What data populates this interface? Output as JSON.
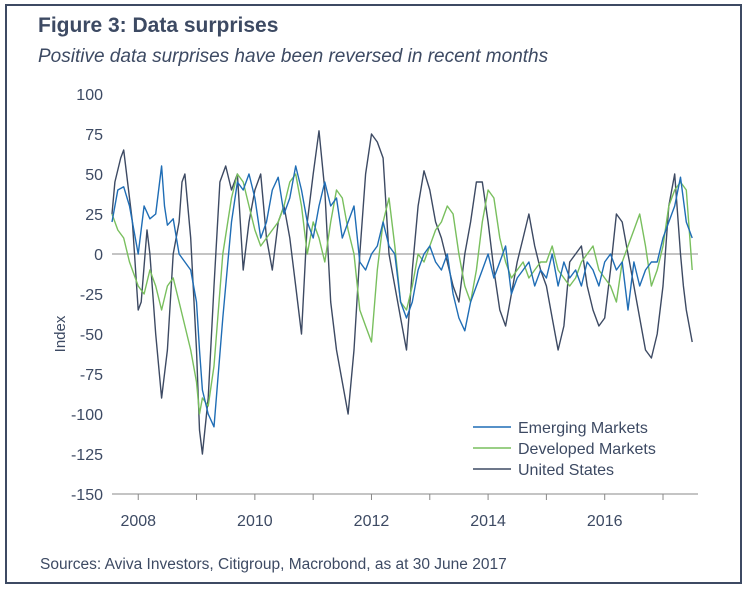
{
  "header": {
    "title": "Figure 3: Data surprises",
    "subtitle": "Positive data surprises have been reversed in recent months"
  },
  "footer": {
    "source": "Sources:  Aviva Investors, Citigroup, Macrobond, as at 30 June 2017"
  },
  "colors": {
    "frame": "#3d4a63",
    "text": "#3d4a63",
    "emerging": "#1f6db5",
    "developed": "#79bf5e",
    "us": "#3d4a63",
    "zero_line": "#a0a0a0"
  },
  "chart_data": {
    "type": "line",
    "ylabel": "Index",
    "xlabel": "",
    "ylim": [
      -150,
      100
    ],
    "xlim": [
      2007.55,
      2017.6
    ],
    "yticks": [
      100,
      75,
      50,
      25,
      0,
      -25,
      -50,
      -75,
      -100,
      -125,
      -150
    ],
    "xticks": [
      2008,
      2010,
      2012,
      2014,
      2016
    ],
    "legend_position": "bottom-right",
    "grid": false,
    "series": [
      {
        "name": "Emerging Markets",
        "x": [
          2007.55,
          2007.65,
          2007.75,
          2007.85,
          2008.0,
          2008.1,
          2008.2,
          2008.3,
          2008.4,
          2008.45,
          2008.5,
          2008.6,
          2008.7,
          2008.8,
          2008.9,
          2009.0,
          2009.05,
          2009.1,
          2009.2,
          2009.3,
          2009.45,
          2009.6,
          2009.7,
          2009.8,
          2009.9,
          2010.0,
          2010.1,
          2010.2,
          2010.3,
          2010.4,
          2010.5,
          2010.6,
          2010.7,
          2010.8,
          2010.9,
          2011.0,
          2011.1,
          2011.2,
          2011.3,
          2011.4,
          2011.5,
          2011.6,
          2011.7,
          2011.8,
          2011.9,
          2012.0,
          2012.1,
          2012.2,
          2012.3,
          2012.4,
          2012.5,
          2012.6,
          2012.7,
          2012.8,
          2012.9,
          2013.0,
          2013.1,
          2013.2,
          2013.3,
          2013.4,
          2013.5,
          2013.6,
          2013.7,
          2013.8,
          2013.9,
          2014.0,
          2014.1,
          2014.2,
          2014.3,
          2014.4,
          2014.5,
          2014.6,
          2014.7,
          2014.8,
          2014.9,
          2015.0,
          2015.1,
          2015.2,
          2015.3,
          2015.4,
          2015.5,
          2015.6,
          2015.7,
          2015.8,
          2015.9,
          2016.0,
          2016.1,
          2016.2,
          2016.3,
          2016.4,
          2016.5,
          2016.6,
          2016.7,
          2016.8,
          2016.9,
          2017.0,
          2017.1,
          2017.2,
          2017.3,
          2017.4,
          2017.5
        ],
        "y": [
          20,
          40,
          42,
          30,
          0,
          30,
          22,
          25,
          55,
          30,
          18,
          22,
          0,
          -5,
          -10,
          -30,
          -60,
          -85,
          -100,
          -108,
          -40,
          20,
          45,
          40,
          50,
          35,
          10,
          20,
          40,
          48,
          25,
          35,
          55,
          40,
          20,
          10,
          30,
          45,
          30,
          35,
          10,
          20,
          30,
          -5,
          -10,
          0,
          5,
          20,
          5,
          0,
          -30,
          -40,
          -30,
          -10,
          0,
          5,
          -5,
          -10,
          0,
          -25,
          -40,
          -48,
          -30,
          -20,
          -10,
          0,
          -15,
          -5,
          5,
          -25,
          -15,
          -10,
          -5,
          -20,
          -10,
          -15,
          0,
          -20,
          -5,
          -15,
          -10,
          -20,
          -5,
          -10,
          -20,
          -5,
          0,
          -10,
          -5,
          -35,
          -5,
          -20,
          -10,
          -5,
          -5,
          10,
          20,
          30,
          48,
          20,
          10
        ]
      },
      {
        "name": "Developed Markets",
        "x": [
          2007.55,
          2007.65,
          2007.75,
          2007.85,
          2008.0,
          2008.1,
          2008.2,
          2008.3,
          2008.4,
          2008.5,
          2008.6,
          2008.7,
          2008.8,
          2008.9,
          2009.0,
          2009.05,
          2009.1,
          2009.2,
          2009.3,
          2009.45,
          2009.6,
          2009.7,
          2009.8,
          2009.9,
          2010.0,
          2010.1,
          2010.2,
          2010.3,
          2010.4,
          2010.5,
          2010.6,
          2010.7,
          2010.8,
          2010.9,
          2011.0,
          2011.1,
          2011.2,
          2011.3,
          2011.4,
          2011.5,
          2011.6,
          2011.7,
          2011.8,
          2011.9,
          2012.0,
          2012.1,
          2012.2,
          2012.3,
          2012.4,
          2012.5,
          2012.6,
          2012.7,
          2012.8,
          2012.9,
          2013.0,
          2013.1,
          2013.2,
          2013.3,
          2013.4,
          2013.5,
          2013.6,
          2013.7,
          2013.8,
          2013.9,
          2014.0,
          2014.1,
          2014.2,
          2014.3,
          2014.4,
          2014.5,
          2014.6,
          2014.7,
          2014.8,
          2014.9,
          2015.0,
          2015.1,
          2015.2,
          2015.3,
          2015.4,
          2015.5,
          2015.6,
          2015.7,
          2015.8,
          2015.9,
          2016.0,
          2016.1,
          2016.2,
          2016.3,
          2016.4,
          2016.5,
          2016.6,
          2016.7,
          2016.8,
          2016.9,
          2017.0,
          2017.1,
          2017.2,
          2017.3,
          2017.4,
          2017.5
        ],
        "y": [
          25,
          15,
          10,
          -5,
          -20,
          -25,
          -10,
          -20,
          -35,
          -20,
          -15,
          -30,
          -45,
          -60,
          -80,
          -100,
          -90,
          -95,
          -70,
          0,
          35,
          50,
          45,
          30,
          15,
          5,
          10,
          15,
          20,
          30,
          45,
          50,
          30,
          0,
          20,
          10,
          -5,
          20,
          40,
          35,
          15,
          0,
          -35,
          -45,
          -55,
          -10,
          20,
          35,
          5,
          -30,
          -35,
          -20,
          0,
          -5,
          5,
          15,
          20,
          30,
          25,
          0,
          -20,
          -30,
          -10,
          20,
          40,
          35,
          10,
          -5,
          -15,
          -10,
          -5,
          -15,
          -10,
          -5,
          -5,
          5,
          -10,
          -15,
          -20,
          -15,
          -5,
          0,
          5,
          -10,
          -15,
          -20,
          -30,
          -5,
          5,
          15,
          25,
          5,
          -20,
          -10,
          5,
          30,
          40,
          45,
          40,
          -10
        ]
      },
      {
        "name": "United States",
        "x": [
          2007.55,
          2007.6,
          2007.7,
          2007.75,
          2007.8,
          2007.9,
          2008.0,
          2008.05,
          2008.15,
          2008.2,
          2008.3,
          2008.4,
          2008.5,
          2008.6,
          2008.7,
          2008.75,
          2008.8,
          2008.9,
          2009.0,
          2009.05,
          2009.1,
          2009.2,
          2009.3,
          2009.4,
          2009.5,
          2009.6,
          2009.7,
          2009.8,
          2009.9,
          2010.0,
          2010.1,
          2010.2,
          2010.3,
          2010.4,
          2010.5,
          2010.6,
          2010.7,
          2010.8,
          2010.9,
          2011.0,
          2011.1,
          2011.2,
          2011.3,
          2011.4,
          2011.5,
          2011.6,
          2011.7,
          2011.8,
          2011.9,
          2012.0,
          2012.1,
          2012.2,
          2012.3,
          2012.4,
          2012.5,
          2012.6,
          2012.7,
          2012.8,
          2012.9,
          2013.0,
          2013.1,
          2013.2,
          2013.3,
          2013.4,
          2013.5,
          2013.6,
          2013.7,
          2013.8,
          2013.9,
          2014.0,
          2014.1,
          2014.2,
          2014.3,
          2014.4,
          2014.5,
          2014.6,
          2014.7,
          2014.8,
          2014.9,
          2015.0,
          2015.1,
          2015.2,
          2015.3,
          2015.4,
          2015.5,
          2015.6,
          2015.7,
          2015.8,
          2015.9,
          2016.0,
          2016.1,
          2016.2,
          2016.3,
          2016.4,
          2016.5,
          2016.6,
          2016.7,
          2016.8,
          2016.9,
          2017.0,
          2017.1,
          2017.2,
          2017.3,
          2017.35,
          2017.4,
          2017.5
        ],
        "y": [
          25,
          45,
          60,
          65,
          50,
          20,
          -35,
          -30,
          15,
          0,
          -50,
          -90,
          -60,
          0,
          20,
          45,
          50,
          10,
          -60,
          -110,
          -125,
          -90,
          -20,
          45,
          55,
          40,
          50,
          -10,
          20,
          40,
          50,
          10,
          -10,
          20,
          30,
          10,
          -20,
          -50,
          20,
          50,
          77,
          40,
          -30,
          -60,
          -80,
          -100,
          -60,
          0,
          50,
          75,
          70,
          60,
          0,
          -20,
          -40,
          -60,
          -10,
          30,
          52,
          40,
          20,
          10,
          -5,
          -20,
          -30,
          0,
          20,
          45,
          45,
          20,
          -10,
          -35,
          -45,
          -25,
          -5,
          10,
          25,
          5,
          -10,
          -20,
          -40,
          -60,
          -45,
          -5,
          0,
          5,
          -20,
          -35,
          -45,
          -40,
          -10,
          25,
          20,
          0,
          -20,
          -40,
          -60,
          -65,
          -50,
          -20,
          30,
          50,
          0,
          -20,
          -35,
          -55
        ]
      }
    ]
  }
}
